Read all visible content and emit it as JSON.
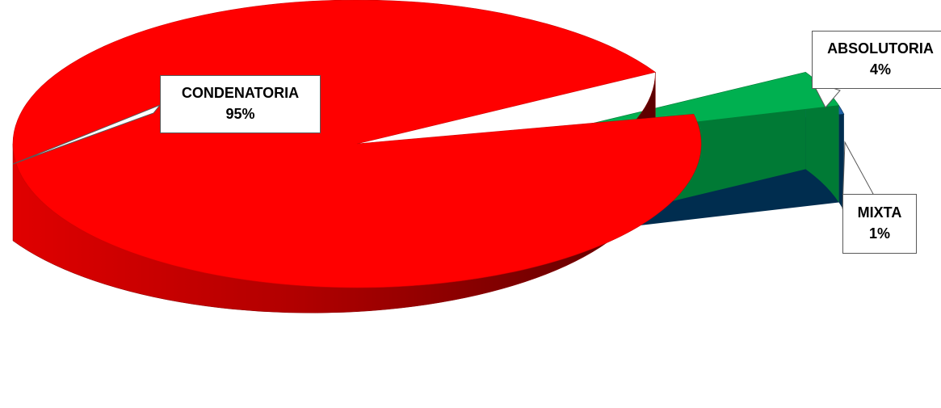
{
  "chart_data": {
    "type": "pie",
    "categories": [
      "CONDENATORIA",
      "ABSOLUTORIA",
      "MIXTA"
    ],
    "values": [
      95,
      4,
      1
    ],
    "value_labels": [
      "95%",
      "4%",
      "1%"
    ],
    "colors": [
      "#ff0000",
      "#00b050",
      "#1f63a8"
    ],
    "side_colors": [
      "#c40000",
      "#007a35",
      "#002d4f"
    ],
    "title": "",
    "legend": "none",
    "style": "3d exploded pie"
  }
}
